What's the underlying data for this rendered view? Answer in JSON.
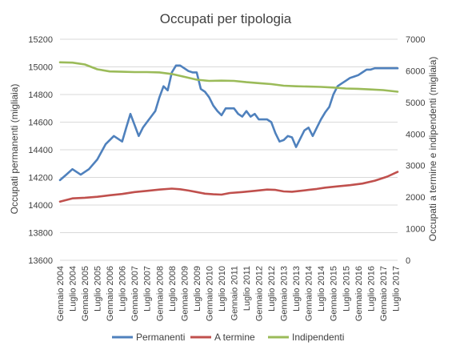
{
  "chart_data": {
    "type": "line",
    "title": "Occupati per tipologia",
    "ylabel_left": "Occupati permanenti (migliaia)",
    "ylabel_right": "Occupati a termine e indipendenti (migliaia)",
    "ylim_left": [
      13600,
      15200
    ],
    "ylim_right": [
      0,
      7000
    ],
    "y_ticks_left": [
      "13600",
      "13800",
      "14000",
      "14200",
      "14400",
      "14600",
      "14800",
      "15000",
      "15200"
    ],
    "y_ticks_right": [
      "0",
      "1000",
      "2000",
      "3000",
      "4000",
      "5000",
      "6000",
      "7000"
    ],
    "x_tick_labels": [
      "Gennaio 2004",
      "Luglio 2004",
      "Gennaio 2005",
      "Luglio 2005",
      "Gennaio 2006",
      "Luglio 2006",
      "Gennaio 2007",
      "Luglio 2007",
      "Gennaio 2008",
      "Luglio 2008",
      "Gennaio 2009",
      "Luglio 2009",
      "Gennaio 2010",
      "Luglio 2010",
      "Gennaio 2011",
      "Luglio 2011",
      "Gennaio 2012",
      "Luglio 2012",
      "Gennaio 2013",
      "Luglio 2013",
      "Gennaio 2014",
      "Luglio 2014",
      "Gennaio 2015",
      "Luglio 2015",
      "Gennaio 2016",
      "Luglio 2016",
      "Gennaio 2017",
      "Luglio 2017"
    ],
    "grid": "horizontal",
    "legend": "bottom",
    "series": [
      {
        "name": "Permanenti",
        "axis": "left",
        "color": "#4F81BD",
        "points": [
          [
            0,
            14180
          ],
          [
            3,
            14220
          ],
          [
            6,
            14260
          ],
          [
            10,
            14220
          ],
          [
            14,
            14260
          ],
          [
            18,
            14330
          ],
          [
            22,
            14440
          ],
          [
            26,
            14500
          ],
          [
            30,
            14460
          ],
          [
            32,
            14560
          ],
          [
            34,
            14660
          ],
          [
            36,
            14580
          ],
          [
            38,
            14500
          ],
          [
            40,
            14560
          ],
          [
            42,
            14600
          ],
          [
            44,
            14640
          ],
          [
            46,
            14680
          ],
          [
            48,
            14780
          ],
          [
            50,
            14860
          ],
          [
            52,
            14830
          ],
          [
            54,
            14960
          ],
          [
            56,
            15010
          ],
          [
            58,
            15010
          ],
          [
            60,
            14990
          ],
          [
            62,
            14970
          ],
          [
            64,
            14960
          ],
          [
            66,
            14960
          ],
          [
            68,
            14840
          ],
          [
            70,
            14820
          ],
          [
            72,
            14780
          ],
          [
            74,
            14720
          ],
          [
            76,
            14680
          ],
          [
            78,
            14650
          ],
          [
            80,
            14700
          ],
          [
            84,
            14700
          ],
          [
            86,
            14660
          ],
          [
            88,
            14640
          ],
          [
            90,
            14680
          ],
          [
            92,
            14640
          ],
          [
            94,
            14660
          ],
          [
            96,
            14620
          ],
          [
            100,
            14620
          ],
          [
            102,
            14600
          ],
          [
            104,
            14520
          ],
          [
            106,
            14460
          ],
          [
            108,
            14470
          ],
          [
            110,
            14500
          ],
          [
            112,
            14490
          ],
          [
            114,
            14420
          ],
          [
            116,
            14480
          ],
          [
            118,
            14540
          ],
          [
            120,
            14560
          ],
          [
            122,
            14500
          ],
          [
            124,
            14560
          ],
          [
            126,
            14620
          ],
          [
            128,
            14670
          ],
          [
            130,
            14710
          ],
          [
            132,
            14800
          ],
          [
            134,
            14860
          ],
          [
            136,
            14880
          ],
          [
            138,
            14900
          ],
          [
            140,
            14920
          ],
          [
            142,
            14930
          ],
          [
            144,
            14940
          ],
          [
            146,
            14960
          ],
          [
            148,
            14980
          ],
          [
            150,
            14980
          ],
          [
            152,
            14990
          ],
          [
            163,
            14990
          ]
        ]
      },
      {
        "name": "A termine",
        "axis": "right",
        "color": "#C0504D",
        "points": [
          [
            0,
            1860
          ],
          [
            6,
            1960
          ],
          [
            12,
            1980
          ],
          [
            18,
            2010
          ],
          [
            24,
            2060
          ],
          [
            30,
            2100
          ],
          [
            36,
            2160
          ],
          [
            42,
            2200
          ],
          [
            48,
            2240
          ],
          [
            54,
            2270
          ],
          [
            58,
            2250
          ],
          [
            62,
            2210
          ],
          [
            66,
            2160
          ],
          [
            70,
            2110
          ],
          [
            74,
            2090
          ],
          [
            78,
            2080
          ],
          [
            82,
            2130
          ],
          [
            88,
            2160
          ],
          [
            94,
            2200
          ],
          [
            100,
            2240
          ],
          [
            104,
            2230
          ],
          [
            108,
            2180
          ],
          [
            112,
            2170
          ],
          [
            116,
            2200
          ],
          [
            120,
            2230
          ],
          [
            124,
            2260
          ],
          [
            128,
            2300
          ],
          [
            134,
            2340
          ],
          [
            140,
            2380
          ],
          [
            146,
            2430
          ],
          [
            152,
            2520
          ],
          [
            158,
            2650
          ],
          [
            163,
            2800
          ]
        ]
      },
      {
        "name": "Indipendenti",
        "axis": "right",
        "color": "#9BBB59",
        "points": [
          [
            0,
            6270
          ],
          [
            6,
            6260
          ],
          [
            12,
            6200
          ],
          [
            18,
            6050
          ],
          [
            24,
            5980
          ],
          [
            30,
            5970
          ],
          [
            36,
            5960
          ],
          [
            42,
            5960
          ],
          [
            48,
            5950
          ],
          [
            54,
            5900
          ],
          [
            60,
            5810
          ],
          [
            66,
            5720
          ],
          [
            72,
            5680
          ],
          [
            78,
            5690
          ],
          [
            84,
            5680
          ],
          [
            90,
            5640
          ],
          [
            96,
            5610
          ],
          [
            102,
            5580
          ],
          [
            108,
            5530
          ],
          [
            114,
            5510
          ],
          [
            120,
            5500
          ],
          [
            126,
            5490
          ],
          [
            132,
            5470
          ],
          [
            138,
            5440
          ],
          [
            144,
            5430
          ],
          [
            150,
            5410
          ],
          [
            156,
            5390
          ],
          [
            163,
            5340
          ]
        ]
      }
    ]
  }
}
